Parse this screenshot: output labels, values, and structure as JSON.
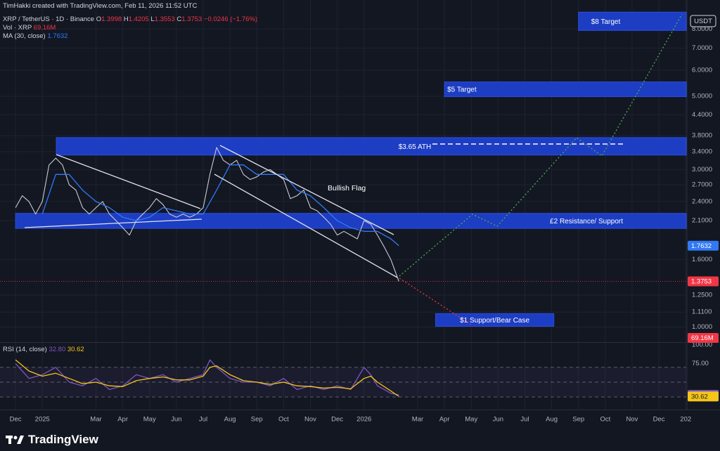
{
  "header": {
    "credit": "TimHakki created with TradingView.com, Feb 11, 2026 11:52 UTC",
    "symbol": "XRP / TetherUS · 1D · Binance",
    "ohlc": [
      {
        "key": "O",
        "value": 1.3998
      },
      {
        "key": "H",
        "value": 1.4205
      },
      {
        "key": "L",
        "value": 1.3553
      },
      {
        "key": "C",
        "value": 1.3753
      }
    ],
    "change": "−0.0246 (−1.76%)",
    "volume_title": "Vol · XRP",
    "volume_value": "69.16M",
    "ma_title": "MA (30, close)",
    "ma_value": 1.7632,
    "rsi_title": "RSI (14, close)",
    "rsi_value": {
      "value": 32.8,
      "label": "32.80"
    },
    "rsi_ma_value": {
      "value": 30.62,
      "label": "30.62"
    }
  },
  "brand": "TradingView",
  "chart_data": [
    {
      "type": "line",
      "currency": "USDT",
      "log_scale": true,
      "grid": true,
      "xlim": [
        -0.58,
        25.02
      ],
      "ylim": [
        0.9,
        9.1
      ],
      "xticks": [
        {
          "value": 0,
          "label": "Dec"
        },
        {
          "value": 1,
          "label": "2025"
        },
        {
          "value": 3,
          "label": "Mar"
        },
        {
          "value": 4,
          "label": "Apr"
        },
        {
          "value": 5,
          "label": "May"
        },
        {
          "value": 6,
          "label": "Jun"
        },
        {
          "value": 7,
          "label": "Jul"
        },
        {
          "value": 8,
          "label": "Aug"
        },
        {
          "value": 9,
          "label": "Sep"
        },
        {
          "value": 10,
          "label": "Oct"
        },
        {
          "value": 11,
          "label": "Nov"
        },
        {
          "value": 12,
          "label": "Dec"
        },
        {
          "value": 13,
          "label": "2026"
        },
        {
          "value": 15,
          "label": "Mar"
        },
        {
          "value": 16,
          "label": "Apr"
        },
        {
          "value": 17,
          "label": "May"
        },
        {
          "value": 18,
          "label": "Jun"
        },
        {
          "value": 19,
          "label": "Jul"
        },
        {
          "value": 20,
          "label": "Aug"
        },
        {
          "value": 21,
          "label": "Sep"
        },
        {
          "value": 22,
          "label": "Oct"
        },
        {
          "value": 23,
          "label": "Nov"
        },
        {
          "value": 24,
          "label": "Dec"
        },
        {
          "value": 25,
          "label": "202"
        }
      ],
      "yticks": [
        {
          "value": 8,
          "label": "8.0000"
        },
        {
          "value": 7,
          "label": "7.0000"
        },
        {
          "value": 6,
          "label": "6.0000"
        },
        {
          "value": 5,
          "label": "5.0000"
        },
        {
          "value": 4.4,
          "label": "4.4000"
        },
        {
          "value": 3.8,
          "label": "3.8000"
        },
        {
          "value": 3.4,
          "label": "3.4000"
        },
        {
          "value": 3,
          "label": "3.0000"
        },
        {
          "value": 2.7,
          "label": "2.7000"
        },
        {
          "value": 2.4,
          "label": "2.4000"
        },
        {
          "value": 2.1,
          "label": "2.1000"
        },
        {
          "value": 1.6,
          "label": "1.6000"
        },
        {
          "value": 1.25,
          "label": "1.2500"
        },
        {
          "value": 1.11,
          "label": "1.1100"
        },
        {
          "value": 1,
          "label": "1.0000"
        }
      ],
      "series": [
        {
          "name": "XRP / TetherUS",
          "color": "#c8cbd3",
          "x": [
            0,
            0.25,
            0.5,
            0.75,
            1,
            1.25,
            1.5,
            1.75,
            2,
            2.25,
            2.5,
            2.75,
            3,
            3.25,
            3.5,
            3.75,
            4,
            4.25,
            4.5,
            4.75,
            5,
            5.25,
            5.5,
            5.75,
            6,
            6.25,
            6.5,
            6.75,
            7,
            7.25,
            7.5,
            7.75,
            8,
            8.25,
            8.5,
            8.75,
            9,
            9.25,
            9.5,
            9.75,
            10,
            10.25,
            10.5,
            10.75,
            11,
            11.25,
            11.5,
            11.75,
            12,
            12.25,
            12.5,
            12.75,
            13,
            13.25,
            13.5,
            13.75,
            14,
            14.3
          ],
          "values": [
            2.3,
            2.5,
            2.4,
            2.2,
            2.4,
            3.1,
            3.25,
            3.1,
            2.7,
            2.6,
            2.3,
            2.2,
            2.3,
            2.4,
            2.2,
            2.1,
            2.0,
            1.9,
            2.1,
            2.2,
            2.3,
            2.45,
            2.35,
            2.2,
            2.15,
            2.2,
            2.15,
            2.2,
            2.3,
            2.9,
            3.5,
            3.2,
            3.1,
            3.2,
            2.9,
            2.8,
            2.85,
            2.95,
            3.0,
            2.9,
            2.8,
            2.45,
            2.5,
            2.6,
            2.3,
            2.25,
            2.15,
            2.05,
            1.9,
            1.95,
            1.9,
            1.85,
            2.1,
            2.05,
            1.9,
            1.75,
            1.6,
            1.3753
          ]
        },
        {
          "name": "MA (30, close)",
          "color": "#3179f5",
          "x": [
            1,
            1.5,
            2,
            2.5,
            3,
            3.5,
            4,
            4.5,
            5,
            5.5,
            6,
            6.5,
            7,
            7.5,
            8,
            8.5,
            9,
            9.5,
            10,
            10.5,
            11,
            11.5,
            12,
            12.5,
            13,
            13.5,
            14,
            14.3
          ],
          "values": [
            2.2,
            2.9,
            2.9,
            2.6,
            2.4,
            2.3,
            2.15,
            2.1,
            2.15,
            2.3,
            2.25,
            2.2,
            2.2,
            2.6,
            3.1,
            3.1,
            2.9,
            2.9,
            2.9,
            2.6,
            2.5,
            2.3,
            2.1,
            2.0,
            1.95,
            1.95,
            1.85,
            1.7632
          ]
        }
      ],
      "zones": [
        {
          "label": "$8 Target",
          "x0": 21,
          "x1": 25.02,
          "low": 7.92,
          "high": 9.0
        },
        {
          "label": "$5 Target",
          "x0": 16,
          "x1": 25.02,
          "low": 4.99,
          "high": 5.53
        },
        {
          "label": "$3.65 ATH",
          "x0": 1.52,
          "x1": 25.02,
          "low": 3.32,
          "high": 3.75
        },
        {
          "label": "£2 Resistance/ Support",
          "x0": 0,
          "x1": 25.02,
          "low": 1.99,
          "high": 2.21
        },
        {
          "label": "$1 Support/Bear Case",
          "x0": 15.67,
          "x1": 20.08,
          "low": 1.005,
          "high": 1.098
        }
      ],
      "annotation": "Bullish Flag"
    },
    {
      "type": "line",
      "ylim": [
        13,
        104
      ],
      "yticks": [
        {
          "value": 100,
          "label": "100.00"
        },
        {
          "value": 75,
          "label": "75.00"
        }
      ],
      "levels": [
        70,
        50,
        30
      ],
      "x": [
        0,
        0.5,
        1,
        1.5,
        2,
        2.5,
        3,
        3.5,
        4,
        4.5,
        5,
        5.5,
        6,
        6.5,
        7,
        7.25,
        7.5,
        8,
        8.5,
        9,
        9.5,
        10,
        10.5,
        11,
        11.5,
        12,
        12.5,
        13,
        13.25,
        13.5,
        14,
        14.3
      ],
      "series": [
        {
          "name": "RSI (14, close)",
          "color": "#7e57c2",
          "values": [
            75,
            55,
            60,
            70,
            50,
            45,
            55,
            40,
            45,
            60,
            55,
            60,
            50,
            55,
            60,
            80,
            70,
            55,
            50,
            50,
            45,
            55,
            40,
            45,
            40,
            45,
            40,
            70,
            60,
            45,
            35,
            32.8
          ]
        },
        {
          "color": "#f5c518",
          "values": [
            80,
            65,
            58,
            62,
            55,
            48,
            50,
            45,
            44,
            52,
            55,
            57,
            53,
            53,
            58,
            70,
            72,
            60,
            52,
            50,
            47,
            50,
            45,
            44,
            42,
            43,
            41,
            55,
            58,
            50,
            38,
            30.62
          ]
        }
      ]
    }
  ]
}
